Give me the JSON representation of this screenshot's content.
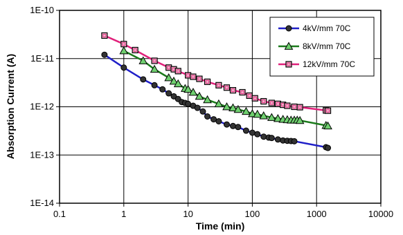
{
  "chart_data": {
    "type": "line",
    "xlabel": "Time  (min)",
    "ylabel": "Absorption Current  (A)",
    "xscale": "log",
    "yscale": "log",
    "xlim": [
      0.1,
      10000
    ],
    "ylim": [
      1e-14,
      1e-10
    ],
    "grid": true,
    "legend_position": "top-right",
    "x_tick_labels": [
      "0.1",
      "1",
      "10",
      "100",
      "1000",
      "10000"
    ],
    "y_tick_labels": [
      "1E-14",
      "1E-13",
      "1E-12",
      "1E-11",
      "1E-10"
    ],
    "series": [
      {
        "name": "4kV/mm 70C",
        "color": "#1f1fc8",
        "marker": "circle",
        "points": [
          [
            0.5,
            1.2e-11
          ],
          [
            1,
            6.5e-12
          ],
          [
            2,
            3.7e-12
          ],
          [
            3,
            2.8e-12
          ],
          [
            4,
            2.3e-12
          ],
          [
            5,
            1.9e-12
          ],
          [
            6,
            1.65e-12
          ],
          [
            7,
            1.45e-12
          ],
          [
            8,
            1.25e-12
          ],
          [
            9,
            1.2e-12
          ],
          [
            10,
            1.15e-12
          ],
          [
            12,
            1.05e-12
          ],
          [
            14,
            9.5e-13
          ],
          [
            17,
            8e-13
          ],
          [
            20,
            6.3e-13
          ],
          [
            25,
            5.5e-13
          ],
          [
            30,
            5e-13
          ],
          [
            40,
            4.3e-13
          ],
          [
            50,
            4e-13
          ],
          [
            60,
            3.8e-13
          ],
          [
            80,
            3.2e-13
          ],
          [
            100,
            2.9e-13
          ],
          [
            120,
            2.7e-13
          ],
          [
            150,
            2.4e-13
          ],
          [
            180,
            2.3e-13
          ],
          [
            200,
            2.25e-13
          ],
          [
            250,
            2.1e-13
          ],
          [
            300,
            2e-13
          ],
          [
            350,
            1.97e-13
          ],
          [
            400,
            1.95e-13
          ],
          [
            450,
            1.93e-13
          ],
          [
            1400,
            1.45e-13
          ],
          [
            1500,
            1.4e-13
          ]
        ]
      },
      {
        "name": "8kV/mm 70C",
        "color": "#1a7a1a",
        "marker": "triangle",
        "points": [
          [
            1,
            1.45e-11
          ],
          [
            2,
            9e-12
          ],
          [
            3,
            6e-12
          ],
          [
            5,
            4e-12
          ],
          [
            6,
            3.4e-12
          ],
          [
            7,
            3e-12
          ],
          [
            9,
            2.4e-12
          ],
          [
            10,
            2.3e-12
          ],
          [
            12,
            2e-12
          ],
          [
            15,
            1.65e-12
          ],
          [
            20,
            1.4e-12
          ],
          [
            30,
            1.15e-12
          ],
          [
            40,
            1e-12
          ],
          [
            50,
            9.5e-13
          ],
          [
            60,
            8.8e-13
          ],
          [
            80,
            8e-13
          ],
          [
            100,
            7.2e-13
          ],
          [
            120,
            7e-13
          ],
          [
            150,
            6.5e-13
          ],
          [
            200,
            6e-13
          ],
          [
            250,
            5.7e-13
          ],
          [
            300,
            5.5e-13
          ],
          [
            350,
            5.4e-13
          ],
          [
            400,
            5.3e-13
          ],
          [
            450,
            5.3e-13
          ],
          [
            500,
            5.3e-13
          ],
          [
            550,
            5.2e-13
          ],
          [
            1400,
            4.1e-13
          ],
          [
            1500,
            4e-13
          ]
        ]
      },
      {
        "name": "12kV/mm 70C",
        "color": "#e0207a",
        "marker": "square",
        "points": [
          [
            0.5,
            3e-11
          ],
          [
            1,
            2e-11
          ],
          [
            1.5,
            1.5e-11
          ],
          [
            3,
            9e-12
          ],
          [
            5,
            6.5e-12
          ],
          [
            6,
            6e-12
          ],
          [
            7,
            5.5e-12
          ],
          [
            10,
            4.5e-12
          ],
          [
            12,
            4.2e-12
          ],
          [
            15,
            3.8e-12
          ],
          [
            20,
            3.3e-12
          ],
          [
            30,
            2.8e-12
          ],
          [
            40,
            2.5e-12
          ],
          [
            50,
            2.2e-12
          ],
          [
            70,
            2e-12
          ],
          [
            90,
            1.7e-12
          ],
          [
            110,
            1.5e-12
          ],
          [
            150,
            1.3e-12
          ],
          [
            200,
            1.2e-12
          ],
          [
            250,
            1.15e-12
          ],
          [
            300,
            1.1e-12
          ],
          [
            350,
            1.05e-12
          ],
          [
            450,
            1e-12
          ],
          [
            550,
            9.8e-13
          ],
          [
            1400,
            8.4e-13
          ],
          [
            1500,
            8.3e-13
          ]
        ]
      }
    ]
  }
}
